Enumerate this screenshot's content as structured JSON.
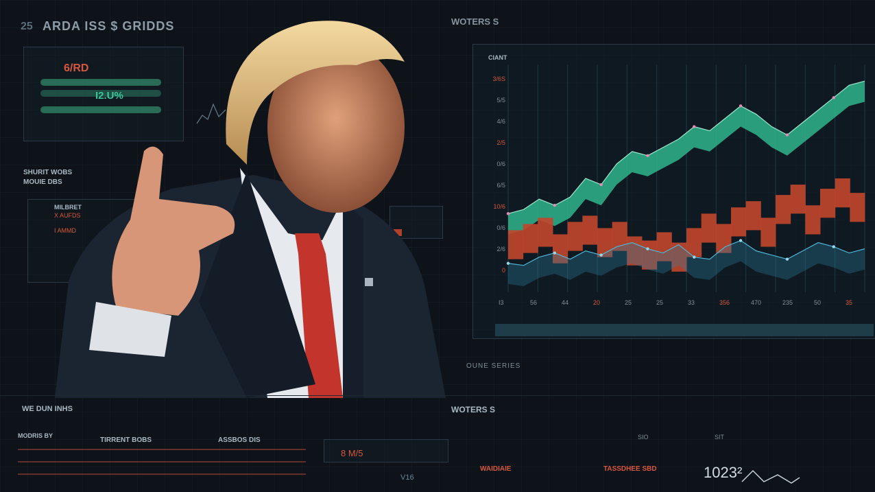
{
  "header": {
    "title": "ARDA  ISS  $  GRIDDS",
    "num": "25",
    "center_title": "WOTERS S"
  },
  "left_panel": {
    "big_values": [
      "6/RD",
      "I2.U%"
    ],
    "labels": [
      "SHURIT WOBS",
      "MOUIE DBS"
    ],
    "mid_labels": [
      "MILBRET",
      "X AUFDS",
      "I AMMD"
    ]
  },
  "chart": {
    "title": "CIANT",
    "y_ticks": [
      "3/6S",
      "5/5",
      "4/6",
      "2/5",
      "0/6",
      "6/5",
      "10/6",
      "0/6",
      "2/6",
      "0"
    ],
    "x_ticks": [
      "I3",
      "56",
      "44",
      "20",
      "25",
      "25",
      "33",
      "356",
      "470",
      "235",
      "50",
      "35"
    ],
    "footer": "OUNE SERIES"
  },
  "chart_data": {
    "type": "area",
    "x": [
      0,
      1,
      2,
      3,
      4,
      5,
      6,
      7,
      8,
      9,
      10,
      11,
      12,
      13,
      14,
      15,
      16,
      17,
      18,
      19,
      20,
      21,
      22,
      23
    ],
    "series": [
      {
        "color": "#2fb58c",
        "values": [
          38,
          40,
          45,
          42,
          46,
          55,
          52,
          62,
          68,
          66,
          70,
          74,
          80,
          78,
          84,
          90,
          86,
          80,
          76,
          82,
          88,
          94,
          100,
          102
        ]
      },
      {
        "color": "#c2462b",
        "values": [
          30,
          33,
          36,
          28,
          34,
          37,
          31,
          34,
          27,
          25,
          29,
          24,
          31,
          38,
          33,
          41,
          44,
          36,
          47,
          52,
          42,
          50,
          55,
          48
        ]
      },
      {
        "color": "#2e7fa0",
        "values": [
          14,
          13,
          17,
          19,
          16,
          20,
          18,
          22,
          24,
          21,
          19,
          23,
          17,
          16,
          22,
          25,
          20,
          18,
          16,
          20,
          24,
          22,
          19,
          21
        ]
      }
    ]
  },
  "bottom": {
    "left_title": "WE DUN INHS",
    "center_title": "WOTERS S",
    "col_heads": [
      "MODRIS BY",
      "TIRRENT BOBS",
      "ASSBOS DIS"
    ],
    "readout": "8 M/5",
    "readout2": "V16",
    "stats": [
      "WAIDIAIE",
      "TASSDHEE SBD"
    ],
    "big_number": "1023²",
    "legend": [
      "SIO",
      "SIT"
    ]
  },
  "colors": {
    "accent_red": "#d9573d",
    "accent_teal": "#2fb58c",
    "bg": "#0d1319"
  }
}
